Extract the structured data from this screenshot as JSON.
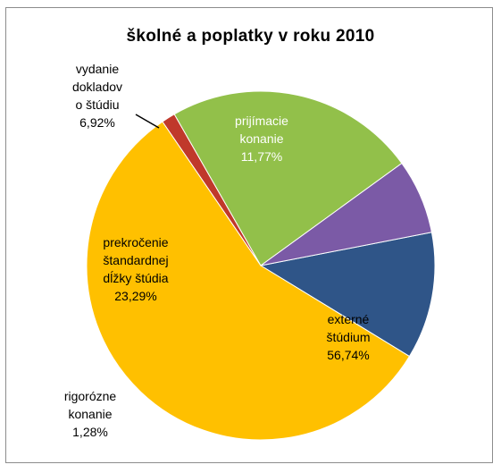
{
  "chart_data": {
    "type": "pie",
    "title": "školné a poplatky v roku 2010",
    "slices": [
      {
        "label_lines": [
          "prijímacie",
          "konanie"
        ],
        "value": 11.77,
        "value_label": "11,77%",
        "color": "#2f5588",
        "text_color": "#ffffff",
        "icon": "slice-admission"
      },
      {
        "label_lines": [
          "externé",
          "štúdium"
        ],
        "value": 56.74,
        "value_label": "56,74%",
        "color": "#ffc000",
        "text_color": "#000000",
        "icon": "slice-external"
      },
      {
        "label_lines": [
          "rigorózne",
          "konanie"
        ],
        "value": 1.28,
        "value_label": "1,28%",
        "color": "#c0392b",
        "text_color": "#000000",
        "icon": "slice-rigorous"
      },
      {
        "label_lines": [
          "prekročenie",
          "štandardnej",
          "dĺžky štúdia"
        ],
        "value": 23.29,
        "value_label": "23,29%",
        "color": "#92c04a",
        "text_color": "#000000",
        "icon": "slice-overtime"
      },
      {
        "label_lines": [
          "vydanie",
          "dokladov",
          "o štúdiu"
        ],
        "value": 6.92,
        "value_label": "6,92%",
        "color": "#7b5aa6",
        "text_color": "#000000",
        "icon": "slice-documents"
      }
    ],
    "legend": "none"
  }
}
